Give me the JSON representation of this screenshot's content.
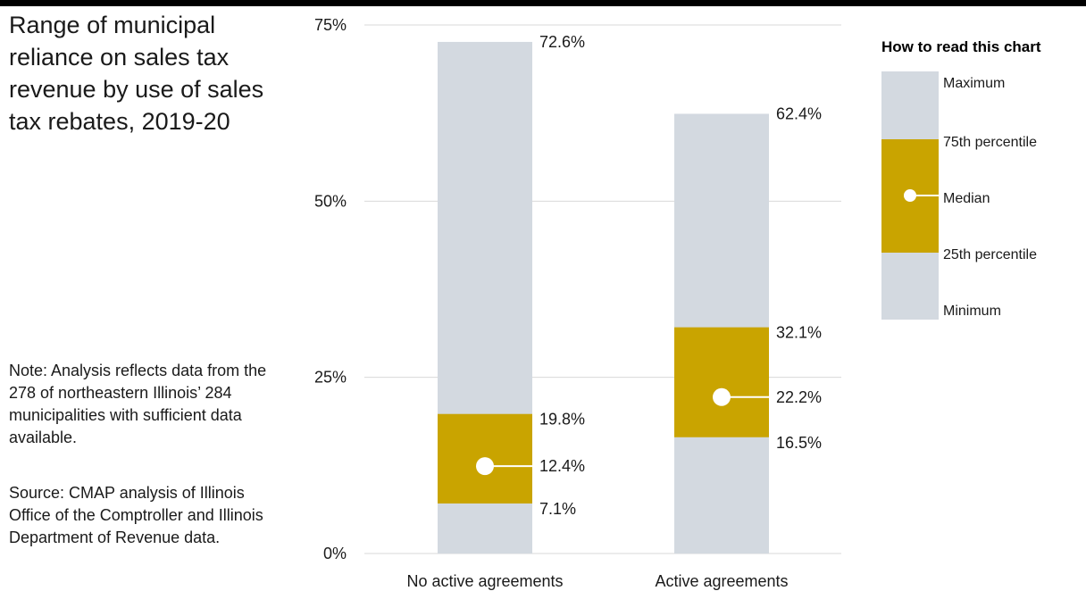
{
  "title": "Range of municipal reliance on sales tax revenue by use of sales tax rebates, 2019-20",
  "note": "Note: Analysis reflects data from the 278 of northeastern Illinois’ 284 municipalities with sufficient data available.",
  "source": "Source: CMAP analysis of Illinois Office of the Comptroller and Illinois Department of Revenue data.",
  "colors": {
    "range": "#d3d9e0",
    "iqr": "#c9a400",
    "median_dot": "#ffffff",
    "grid": "#d9d9d9",
    "topbar": "#000000"
  },
  "chart_data": {
    "type": "bar",
    "subtype": "range-box",
    "y_unit": "percent",
    "ylim": [
      0,
      75
    ],
    "yticks": [
      0,
      25,
      50,
      75
    ],
    "ytick_labels": [
      "0%",
      "25%",
      "50%",
      "75%"
    ],
    "grid": true,
    "categories": [
      "No active agreements",
      "Active agreements"
    ],
    "series": [
      {
        "name": "Minimum",
        "values": [
          0,
          0
        ]
      },
      {
        "name": "25th percentile",
        "values": [
          7.1,
          16.5
        ]
      },
      {
        "name": "Median",
        "values": [
          12.4,
          22.2
        ]
      },
      {
        "name": "75th percentile",
        "values": [
          19.8,
          32.1
        ]
      },
      {
        "name": "Maximum",
        "values": [
          72.6,
          62.4
        ]
      }
    ],
    "value_labels": [
      {
        "max": "72.6%",
        "p75": "19.8%",
        "median": "12.4%",
        "p25": "7.1%"
      },
      {
        "max": "62.4%",
        "p75": "32.1%",
        "median": "22.2%",
        "p25": "16.5%"
      }
    ]
  },
  "legend": {
    "title": "How to read this chart",
    "placement": "right",
    "items": [
      "Maximum",
      "75th percentile",
      "Median",
      "25th percentile",
      "Minimum"
    ]
  }
}
